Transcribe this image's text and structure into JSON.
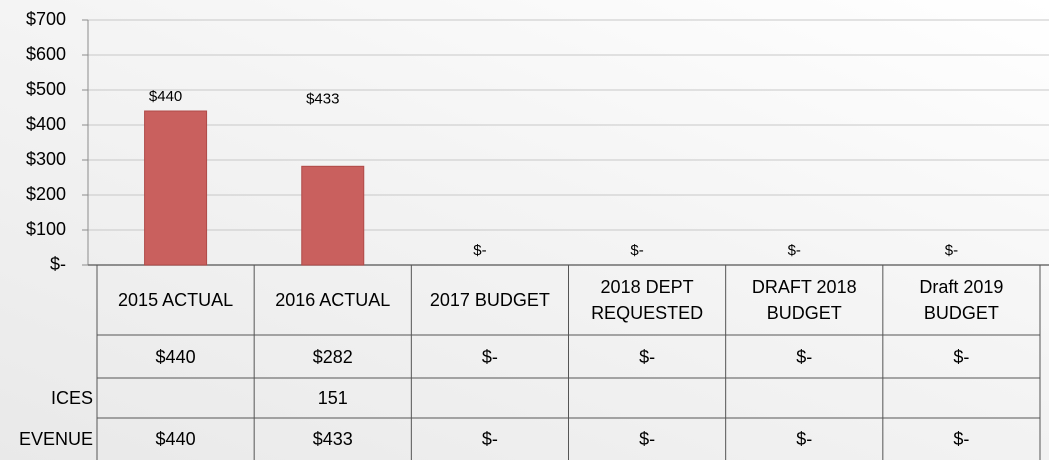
{
  "chart_data": {
    "type": "bar",
    "stacked": true,
    "categories": [
      "2015 ACTUAL",
      "2016 ACTUAL",
      "2017 BUDGET",
      "2018 DEPT REQUESTED",
      "DRAFT 2018 BUDGET",
      "Draft 2019 BUDGET"
    ],
    "series": [
      {
        "color": "#c9605e",
        "values": [
          440,
          282,
          0,
          0,
          0,
          0
        ]
      },
      {
        "color": "none",
        "values": [
          null,
          151,
          null,
          null,
          null,
          null
        ]
      }
    ],
    "totals": [
      440,
      433,
      0,
      0,
      0,
      0
    ],
    "value_labels": [
      "$440",
      "$433",
      "$-",
      "$-",
      "$-",
      "$-"
    ],
    "ylim": [
      0,
      700
    ],
    "yticks": [
      {
        "value": 0,
        "label": "$-"
      },
      {
        "value": 100,
        "label": "$100"
      },
      {
        "value": 200,
        "label": "$200"
      },
      {
        "value": 300,
        "label": "$300"
      },
      {
        "value": 400,
        "label": "$400"
      },
      {
        "value": 500,
        "label": "$500"
      },
      {
        "value": 600,
        "label": "$600"
      },
      {
        "value": 700,
        "label": "$700"
      }
    ],
    "grid": true
  },
  "table": {
    "rows": [
      {
        "label": null,
        "cells": [
          "$440",
          "$282",
          "$-",
          "$-",
          "$-",
          "$-"
        ]
      },
      {
        "label": "ICES",
        "cells": [
          null,
          "151",
          null,
          null,
          null,
          null
        ]
      },
      {
        "label": "EVENUE",
        "cells": [
          "$440",
          "$433",
          "$-",
          "$-",
          "$-",
          "$-"
        ]
      }
    ]
  }
}
